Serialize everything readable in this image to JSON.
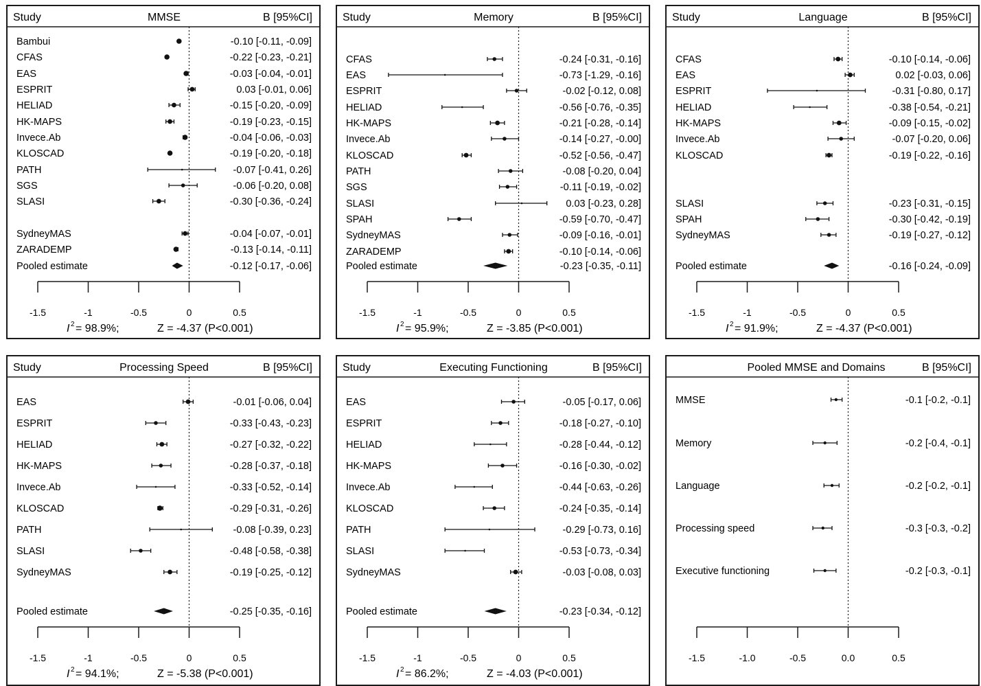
{
  "chart_data": [
    {
      "type": "forest",
      "header_left": "Study",
      "header_title": "MMSE",
      "header_right": "B [95%CI]",
      "ticks": [
        "-1.5",
        "-1",
        "-0.5",
        "0",
        "0.5"
      ],
      "xlim": [
        -1.5,
        0.5
      ],
      "stat_i2": "= 98.9%;",
      "stat_z": "Z = -4.37 (P<0.001)",
      "rows": [
        {
          "label": "Bambui",
          "est": -0.1,
          "lo": -0.11,
          "hi": -0.09,
          "text": "-0.10 [-0.11, -0.09]"
        },
        {
          "label": "CFAS",
          "est": -0.22,
          "lo": -0.23,
          "hi": -0.21,
          "text": "-0.22 [-0.23, -0.21]"
        },
        {
          "label": "EAS",
          "est": -0.03,
          "lo": -0.04,
          "hi": -0.01,
          "text": "-0.03 [-0.04, -0.01]"
        },
        {
          "label": "ESPRIT",
          "est": 0.03,
          "lo": -0.01,
          "hi": 0.06,
          "text": "0.03 [-0.01,  0.06]"
        },
        {
          "label": "HELIAD",
          "est": -0.15,
          "lo": -0.2,
          "hi": -0.09,
          "text": "-0.15 [-0.20, -0.09]"
        },
        {
          "label": "HK-MAPS",
          "est": -0.19,
          "lo": -0.23,
          "hi": -0.15,
          "text": "-0.19 [-0.23, -0.15]"
        },
        {
          "label": "Invece.Ab",
          "est": -0.04,
          "lo": -0.06,
          "hi": -0.03,
          "text": "-0.04 [-0.06, -0.03]"
        },
        {
          "label": "KLOSCAD",
          "est": -0.19,
          "lo": -0.2,
          "hi": -0.18,
          "text": "-0.19 [-0.20, -0.18]"
        },
        {
          "label": "PATH",
          "est": -0.07,
          "lo": -0.41,
          "hi": 0.26,
          "text": "-0.07 [-0.41,  0.26]"
        },
        {
          "label": "SGS",
          "est": -0.06,
          "lo": -0.2,
          "hi": 0.08,
          "text": "-0.06 [-0.20,  0.08]"
        },
        {
          "label": "SLASI",
          "est": -0.3,
          "lo": -0.36,
          "hi": -0.24,
          "text": "-0.30 [-0.36, -0.24]"
        },
        {
          "label": "SydneyMAS",
          "est": -0.04,
          "lo": -0.07,
          "hi": -0.01,
          "text": "-0.04 [-0.07, -0.01]"
        },
        {
          "label": "ZARADEMP",
          "est": -0.13,
          "lo": -0.14,
          "hi": -0.11,
          "text": "-0.13 [-0.14, -0.11]"
        },
        {
          "label": "Pooled estimate",
          "est": -0.12,
          "lo": -0.17,
          "hi": -0.06,
          "text": "-0.12 [-0.17, -0.06]",
          "pooled": true
        }
      ]
    },
    {
      "type": "forest",
      "header_left": "Study",
      "header_title": "Memory",
      "header_right": "B [95%CI]",
      "ticks": [
        "-1.5",
        "-1",
        "-0.5",
        "0",
        "0.5"
      ],
      "xlim": [
        -1.5,
        0.5
      ],
      "stat_i2": "= 95.9%;",
      "stat_z": "Z = -3.85 (P<0.001)",
      "rows": [
        {
          "label": "CFAS",
          "est": -0.24,
          "lo": -0.31,
          "hi": -0.16,
          "text": "-0.24 [-0.31, -0.16]"
        },
        {
          "label": "EAS",
          "est": -0.73,
          "lo": -1.29,
          "hi": -0.16,
          "text": "-0.73 [-1.29, -0.16]"
        },
        {
          "label": "ESPRIT",
          "est": -0.02,
          "lo": -0.12,
          "hi": 0.08,
          "text": "-0.02 [-0.12,  0.08]"
        },
        {
          "label": "HELIAD",
          "est": -0.56,
          "lo": -0.76,
          "hi": -0.35,
          "text": "-0.56 [-0.76, -0.35]"
        },
        {
          "label": "HK-MAPS",
          "est": -0.21,
          "lo": -0.28,
          "hi": -0.14,
          "text": "-0.21 [-0.28, -0.14]"
        },
        {
          "label": "Invece.Ab",
          "est": -0.14,
          "lo": -0.27,
          "hi": -0.0,
          "text": "-0.14 [-0.27, -0.00]"
        },
        {
          "label": "KLOSCAD",
          "est": -0.52,
          "lo": -0.56,
          "hi": -0.47,
          "text": "-0.52 [-0.56, -0.47]"
        },
        {
          "label": "PATH",
          "est": -0.08,
          "lo": -0.2,
          "hi": 0.04,
          "text": "-0.08 [-0.20,  0.04]"
        },
        {
          "label": "SGS",
          "est": -0.11,
          "lo": -0.19,
          "hi": -0.02,
          "text": "-0.11 [-0.19, -0.02]"
        },
        {
          "label": "SLASI",
          "est": 0.03,
          "lo": -0.23,
          "hi": 0.28,
          "text": "0.03 [-0.23,  0.28]"
        },
        {
          "label": "SPAH",
          "est": -0.59,
          "lo": -0.7,
          "hi": -0.47,
          "text": "-0.59 [-0.70, -0.47]"
        },
        {
          "label": "SydneyMAS",
          "est": -0.09,
          "lo": -0.16,
          "hi": -0.01,
          "text": "-0.09 [-0.16, -0.01]"
        },
        {
          "label": "ZARADEMP",
          "est": -0.1,
          "lo": -0.14,
          "hi": -0.06,
          "text": "-0.10 [-0.14, -0.06]"
        },
        {
          "label": "Pooled estimate",
          "est": -0.23,
          "lo": -0.35,
          "hi": -0.11,
          "text": "-0.23 [-0.35, -0.11]",
          "pooled": true
        }
      ]
    },
    {
      "type": "forest",
      "header_left": "Study",
      "header_title": "Language",
      "header_right": "B [95%CI]",
      "ticks": [
        "-1.5",
        "-1",
        "-0.5",
        "0",
        "0.5"
      ],
      "xlim": [
        -1.5,
        0.5
      ],
      "stat_i2": "= 91.9%;",
      "stat_z": "Z = -4.37 (P<0.001)",
      "rows": [
        {
          "label": "CFAS",
          "est": -0.1,
          "lo": -0.14,
          "hi": -0.06,
          "text": "-0.10 [-0.14, -0.06]"
        },
        {
          "label": "EAS",
          "est": 0.02,
          "lo": -0.03,
          "hi": 0.06,
          "text": "0.02 [-0.03,  0.06]"
        },
        {
          "label": "ESPRIT",
          "est": -0.31,
          "lo": -0.8,
          "hi": 0.17,
          "text": "-0.31 [-0.80,  0.17]"
        },
        {
          "label": "HELIAD",
          "est": -0.38,
          "lo": -0.54,
          "hi": -0.21,
          "text": "-0.38 [-0.54, -0.21]"
        },
        {
          "label": "HK-MAPS",
          "est": -0.09,
          "lo": -0.15,
          "hi": -0.02,
          "text": "-0.09 [-0.15, -0.02]"
        },
        {
          "label": "Invece.Ab",
          "est": -0.07,
          "lo": -0.2,
          "hi": 0.06,
          "text": "-0.07 [-0.20,  0.06]"
        },
        {
          "label": "KLOSCAD",
          "est": -0.19,
          "lo": -0.22,
          "hi": -0.16,
          "text": "-0.19 [-0.22, -0.16]"
        },
        {
          "label": "SLASI",
          "est": -0.23,
          "lo": -0.31,
          "hi": -0.15,
          "text": "-0.23 [-0.31, -0.15]"
        },
        {
          "label": "SPAH",
          "est": -0.3,
          "lo": -0.42,
          "hi": -0.19,
          "text": "-0.30 [-0.42, -0.19]"
        },
        {
          "label": "SydneyMAS",
          "est": -0.19,
          "lo": -0.27,
          "hi": -0.12,
          "text": "-0.19 [-0.27, -0.12]"
        },
        {
          "label": "Pooled estimate",
          "est": -0.16,
          "lo": -0.24,
          "hi": -0.09,
          "text": "-0.16 [-0.24, -0.09]",
          "pooled": true
        }
      ]
    },
    {
      "type": "forest",
      "header_left": "Study",
      "header_title": "Processing Speed",
      "header_right": "B [95%CI]",
      "ticks": [
        "-1.5",
        "-1",
        "-0.5",
        "0",
        "0.5"
      ],
      "xlim": [
        -1.5,
        0.5
      ],
      "stat_i2": "= 94.1%;",
      "stat_z": "Z = -5.38 (P<0.001)",
      "rows": [
        {
          "label": "EAS",
          "est": -0.01,
          "lo": -0.06,
          "hi": 0.04,
          "text": "-0.01 [-0.06,  0.04]"
        },
        {
          "label": "ESPRIT",
          "est": -0.33,
          "lo": -0.43,
          "hi": -0.23,
          "text": "-0.33 [-0.43, -0.23]"
        },
        {
          "label": "HELIAD",
          "est": -0.27,
          "lo": -0.32,
          "hi": -0.22,
          "text": "-0.27 [-0.32, -0.22]"
        },
        {
          "label": "HK-MAPS",
          "est": -0.28,
          "lo": -0.37,
          "hi": -0.18,
          "text": "-0.28 [-0.37, -0.18]"
        },
        {
          "label": "Invece.Ab",
          "est": -0.33,
          "lo": -0.52,
          "hi": -0.14,
          "text": "-0.33 [-0.52, -0.14]"
        },
        {
          "label": "KLOSCAD",
          "est": -0.29,
          "lo": -0.31,
          "hi": -0.26,
          "text": "-0.29 [-0.31, -0.26]"
        },
        {
          "label": "PATH",
          "est": -0.08,
          "lo": -0.39,
          "hi": 0.23,
          "text": "-0.08 [-0.39,  0.23]"
        },
        {
          "label": "SLASI",
          "est": -0.48,
          "lo": -0.58,
          "hi": -0.38,
          "text": "-0.48 [-0.58, -0.38]"
        },
        {
          "label": "SydneyMAS",
          "est": -0.19,
          "lo": -0.25,
          "hi": -0.12,
          "text": "-0.19 [-0.25, -0.12]"
        },
        {
          "label": "Pooled estimate",
          "est": -0.25,
          "lo": -0.35,
          "hi": -0.16,
          "text": "-0.25 [-0.35, -0.16]",
          "pooled": true
        }
      ]
    },
    {
      "type": "forest",
      "header_left": "Study",
      "header_title": "Executing Functioning",
      "header_right": "B [95%CI]",
      "ticks": [
        "-1.5",
        "-1",
        "-0.5",
        "0",
        "0.5"
      ],
      "xlim": [
        -1.5,
        0.5
      ],
      "stat_i2": "= 86.2%;",
      "stat_z": "Z = -4.03 (P<0.001)",
      "rows": [
        {
          "label": "EAS",
          "est": -0.05,
          "lo": -0.17,
          "hi": 0.06,
          "text": "-0.05 [-0.17,  0.06]"
        },
        {
          "label": "ESPRIT",
          "est": -0.18,
          "lo": -0.27,
          "hi": -0.1,
          "text": "-0.18 [-0.27, -0.10]"
        },
        {
          "label": "HELIAD",
          "est": -0.28,
          "lo": -0.44,
          "hi": -0.12,
          "text": "-0.28 [-0.44, -0.12]"
        },
        {
          "label": "HK-MAPS",
          "est": -0.16,
          "lo": -0.3,
          "hi": -0.02,
          "text": "-0.16 [-0.30, -0.02]"
        },
        {
          "label": "Invece.Ab",
          "est": -0.44,
          "lo": -0.63,
          "hi": -0.26,
          "text": "-0.44 [-0.63, -0.26]"
        },
        {
          "label": "KLOSCAD",
          "est": -0.24,
          "lo": -0.35,
          "hi": -0.14,
          "text": "-0.24 [-0.35, -0.14]"
        },
        {
          "label": "PATH",
          "est": -0.29,
          "lo": -0.73,
          "hi": 0.16,
          "text": "-0.29 [-0.73,  0.16]"
        },
        {
          "label": "SLASI",
          "est": -0.53,
          "lo": -0.73,
          "hi": -0.34,
          "text": "-0.53 [-0.73, -0.34]"
        },
        {
          "label": "SydneyMAS",
          "est": -0.03,
          "lo": -0.08,
          "hi": 0.03,
          "text": "-0.03 [-0.08,  0.03]"
        },
        {
          "label": "Pooled estimate",
          "est": -0.23,
          "lo": -0.34,
          "hi": -0.12,
          "text": "-0.23 [-0.34, -0.12]",
          "pooled": true
        }
      ]
    },
    {
      "type": "forest",
      "header_left": "",
      "header_title": "Pooled MMSE and Domains",
      "header_right": "B [95%CI]",
      "ticks": [
        "-1.5",
        "-1.0",
        "-0.5",
        "0.0",
        "0.5"
      ],
      "xlim": [
        -1.5,
        0.5
      ],
      "stat_i2": "",
      "stat_z": "",
      "rows": [
        {
          "label": "MMSE",
          "est": -0.12,
          "lo": -0.17,
          "hi": -0.06,
          "text": "-0.1 [-0.2, -0.1]"
        },
        {
          "label": "Memory",
          "est": -0.23,
          "lo": -0.35,
          "hi": -0.11,
          "text": "-0.2 [-0.4, -0.1]"
        },
        {
          "label": "Language",
          "est": -0.16,
          "lo": -0.24,
          "hi": -0.09,
          "text": "-0.2 [-0.2, -0.1]"
        },
        {
          "label": "Processing speed",
          "est": -0.25,
          "lo": -0.35,
          "hi": -0.16,
          "text": "-0.3 [-0.3, -0.2]"
        },
        {
          "label": "Executive functioning",
          "est": -0.23,
          "lo": -0.34,
          "hi": -0.12,
          "text": "-0.2 [-0.3, -0.1]"
        }
      ]
    }
  ]
}
